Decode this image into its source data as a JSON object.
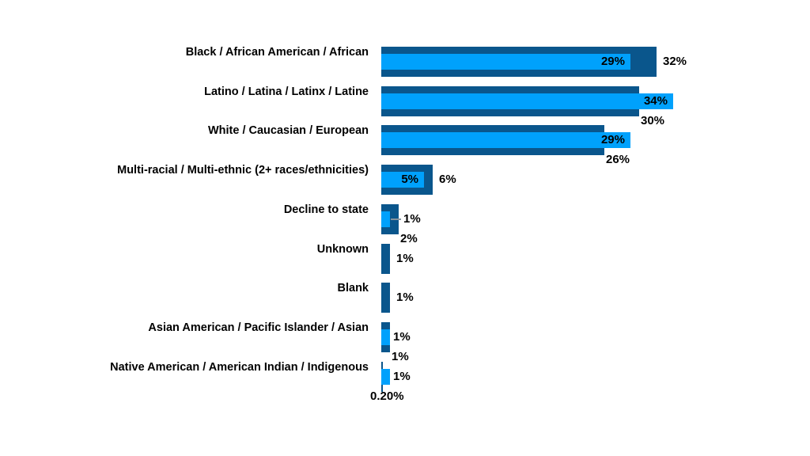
{
  "chart_data": {
    "type": "bar",
    "orientation": "horizontal",
    "title": "",
    "legend": "none",
    "background": "#FFFFFF",
    "axes_visible": false,
    "value_suffix": "%",
    "xlim": [
      0,
      40
    ],
    "categories": [
      "Black / African American / African",
      "Latino / Latina / Latinx / Latine",
      "White / Caucasian / European",
      "Multi-racial / Multi-ethnic (2+ races/ethnicities)",
      "Decline to state",
      "Unknown",
      "Blank",
      "Asian American / Pacific Islander / Asian",
      "Native American / American Indian / Indigenous"
    ],
    "series": [
      {
        "name": "dark-blue-series",
        "color": "#0A568C",
        "values": [
          32,
          30,
          26,
          6,
          2,
          1,
          1,
          1,
          0.2
        ],
        "data_labels": [
          "32%",
          "30%",
          "26%",
          "6%",
          "2%",
          "1%",
          "1%",
          "1%",
          "0.20%"
        ],
        "label_positions": [
          "right",
          "below",
          "below",
          "right",
          "below",
          "right",
          "right",
          "below",
          "below-start"
        ]
      },
      {
        "name": "light-blue-series",
        "color": "#00A1FC",
        "values": [
          29,
          34,
          29,
          5,
          1,
          0,
          0,
          1,
          1
        ],
        "data_labels": [
          "29%",
          "34%",
          "29%",
          "5%",
          "1%",
          "",
          "",
          "1%",
          "1%"
        ],
        "label_positions": [
          "inside",
          "inside",
          "inside",
          "inside",
          "leader",
          "none",
          "none",
          "right",
          "right"
        ]
      }
    ],
    "label_text_color": "#000000",
    "leader_line_color": "#86939E"
  }
}
